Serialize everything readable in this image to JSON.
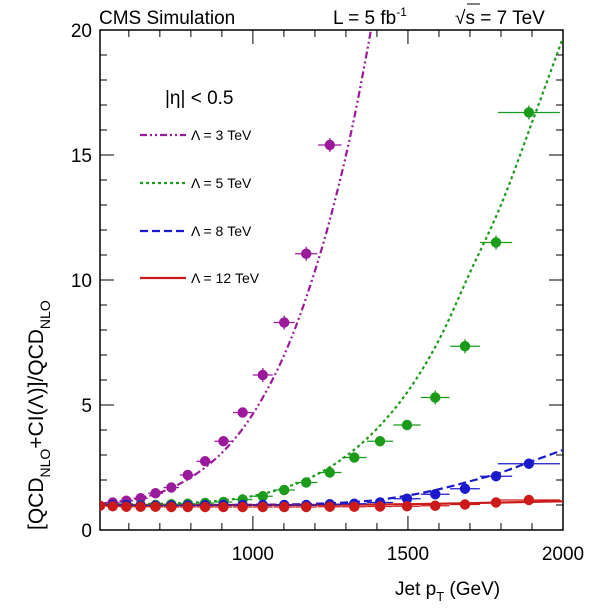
{
  "chart_data": {
    "type": "scatter",
    "header": {
      "experiment": "CMS Simulation",
      "lumi_prefix": "L = 5 fb",
      "lumi_exp": "-1",
      "energy_sqrt": "√",
      "energy_rest": "s = 7 TeV"
    },
    "region_label": "|η| < 0.5",
    "xlabel_main": "Jet p",
    "xlabel_sub": "T",
    "xlabel_unit": " (GeV)",
    "ylabel_parts": [
      "[QCD",
      "NLO",
      "+CI(Λ)]/QCD",
      "NLO"
    ],
    "xlim": [
      507,
      2000
    ],
    "ylim": [
      0,
      20
    ],
    "x_ticks": [
      1000,
      1500,
      2000
    ],
    "x_tick_labels": [
      "1000",
      "1500",
      "2000"
    ],
    "y_ticks": [
      0,
      5,
      10,
      15,
      20
    ],
    "y_tick_labels": [
      "0",
      "5",
      "10",
      "15",
      "20"
    ],
    "legend_position": "upper-left",
    "series": [
      {
        "name": "Λ =  3 TeV",
        "color": "#9b1a9b",
        "dash": "7,3,2,3,2,3",
        "x": [
          507,
          548,
          592,
          638,
          686,
          737,
          790,
          846,
          905,
          967,
          1032,
          1101,
          1172,
          1248,
          1327,
          1410
        ],
        "y": [
          1.06,
          1.1,
          1.17,
          1.28,
          1.44,
          1.68,
          2.03,
          2.5,
          3.15,
          4.05,
          5.3,
          7.0,
          9.3,
          12.4,
          16.5,
          22.0
        ],
        "px": [
          548,
          592,
          638,
          686,
          737,
          790,
          846,
          905,
          967,
          1032,
          1101,
          1172,
          1248,
          1327
        ],
        "py": [
          1.1,
          1.17,
          1.27,
          1.47,
          1.7,
          2.2,
          2.75,
          3.55,
          4.7,
          6.2,
          8.3,
          11.05,
          15.4,
          20.5
        ],
        "pxerr": [
          22,
          22,
          23,
          24,
          25,
          26,
          28,
          29,
          31,
          32,
          34,
          36,
          38,
          40
        ]
      },
      {
        "name": "Λ =  5 TeV",
        "color": "#1a9b1a",
        "dash": "3,3",
        "x": [
          507,
          600,
          700,
          800,
          900,
          1000,
          1100,
          1200,
          1300,
          1400,
          1500,
          1600,
          1700,
          1800,
          1900,
          2000
        ],
        "y": [
          1.02,
          1.03,
          1.05,
          1.09,
          1.18,
          1.36,
          1.68,
          2.18,
          2.95,
          4.05,
          5.55,
          7.6,
          10.3,
          13.0,
          16.3,
          19.7
        ],
        "px": [
          548,
          592,
          638,
          686,
          737,
          790,
          846,
          905,
          967,
          1032,
          1101,
          1172,
          1248,
          1327,
          1410,
          1497,
          1588,
          1684,
          1784,
          1890
        ],
        "py": [
          1.0,
          1.0,
          1.0,
          1.0,
          1.03,
          1.05,
          1.08,
          1.12,
          1.22,
          1.35,
          1.6,
          1.9,
          2.3,
          2.9,
          3.55,
          4.2,
          5.3,
          7.35,
          11.5,
          16.7
        ],
        "pxerr": [
          22,
          22,
          23,
          24,
          25,
          26,
          28,
          29,
          31,
          32,
          34,
          36,
          38,
          40,
          42,
          44,
          46,
          48,
          52,
          100
        ]
      },
      {
        "name": "Λ =  8 TeV",
        "color": "#1a1acc",
        "dash": "8,4",
        "x": [
          507,
          700,
          900,
          1100,
          1200,
          1300,
          1400,
          1500,
          1600,
          1700,
          1800,
          1900,
          2000
        ],
        "y": [
          1.0,
          1.0,
          1.0,
          1.02,
          1.05,
          1.1,
          1.2,
          1.38,
          1.63,
          1.95,
          2.3,
          2.75,
          3.2
        ],
        "px": [
          548,
          592,
          638,
          686,
          737,
          790,
          846,
          905,
          967,
          1032,
          1101,
          1172,
          1248,
          1327,
          1410,
          1497,
          1588,
          1684,
          1784,
          1890
        ],
        "py": [
          1.0,
          1.0,
          0.98,
          0.97,
          0.98,
          0.98,
          0.99,
          1.0,
          1.0,
          1.0,
          1.0,
          1.0,
          1.03,
          1.05,
          1.1,
          1.25,
          1.43,
          1.65,
          2.15,
          2.65
        ],
        "pxerr": [
          22,
          22,
          23,
          24,
          25,
          26,
          28,
          29,
          31,
          32,
          34,
          36,
          38,
          40,
          42,
          44,
          46,
          48,
          52,
          100
        ]
      },
      {
        "name": "Λ = 12 TeV",
        "color": "#cc1a1a",
        "dash": "",
        "x": [
          507,
          800,
          1100,
          1400,
          1600,
          1800,
          2000
        ],
        "y": [
          1.0,
          1.0,
          1.0,
          1.02,
          1.05,
          1.1,
          1.15
        ],
        "px": [
          507,
          548,
          592,
          638,
          686,
          737,
          790,
          846,
          905,
          967,
          1032,
          1101,
          1172,
          1248,
          1327,
          1410,
          1497,
          1588,
          1684,
          1784,
          1890
        ],
        "py": [
          0.97,
          0.95,
          0.93,
          0.93,
          0.93,
          0.92,
          0.92,
          0.92,
          0.92,
          0.92,
          0.92,
          0.92,
          0.92,
          0.93,
          0.93,
          0.94,
          0.95,
          0.97,
          1.02,
          1.1,
          1.2
        ],
        "pxerr": [
          20,
          22,
          22,
          23,
          24,
          25,
          26,
          28,
          29,
          31,
          32,
          34,
          36,
          38,
          40,
          42,
          44,
          46,
          48,
          52,
          100
        ]
      }
    ]
  }
}
